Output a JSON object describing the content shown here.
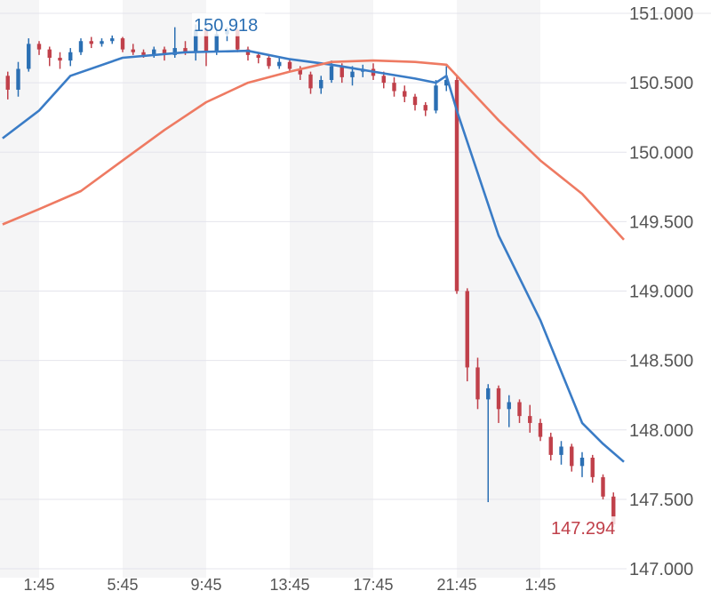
{
  "chart_data": {
    "type": "candlestick",
    "title": "",
    "ylim": [
      147.0,
      151.0
    ],
    "y_ticks": [
      "151.000",
      "150.500",
      "150.000",
      "149.500",
      "149.000",
      "148.500",
      "148.000",
      "147.500",
      "147.000"
    ],
    "x_ticks": [
      "1:45",
      "5:45",
      "9:45",
      "13:45",
      "17:45",
      "21:45",
      "1:45"
    ],
    "grid": true,
    "colors": {
      "up": "#2b6fb3",
      "down": "#c0404a",
      "ma_fast": "#3a7cc6",
      "ma_slow": "#ee7a62",
      "band": "#f5f5f6",
      "grid": "#e4e4ec"
    },
    "price_labels": [
      {
        "text": "150.918",
        "value": 150.918,
        "color": "#2b6fb3"
      },
      {
        "text": "147.294",
        "value": 147.294,
        "color": "#c0404a"
      }
    ],
    "candles_columns": [
      "time",
      "open",
      "high",
      "low",
      "close"
    ],
    "candles": [
      [
        "0:15",
        150.55,
        150.58,
        150.38,
        150.45
      ],
      [
        "0:45",
        150.45,
        150.65,
        150.4,
        150.6
      ],
      [
        "1:15",
        150.6,
        150.82,
        150.58,
        150.78
      ],
      [
        "1:45",
        150.78,
        150.8,
        150.7,
        150.74
      ],
      [
        "2:15",
        150.74,
        150.76,
        150.62,
        150.68
      ],
      [
        "2:45",
        150.68,
        150.72,
        150.6,
        150.66
      ],
      [
        "3:15",
        150.66,
        150.75,
        150.62,
        150.72
      ],
      [
        "3:45",
        150.72,
        150.82,
        150.7,
        150.8
      ],
      [
        "4:15",
        150.8,
        150.83,
        150.75,
        150.78
      ],
      [
        "4:45",
        150.78,
        150.82,
        150.76,
        150.8
      ],
      [
        "5:15",
        150.8,
        150.84,
        150.78,
        150.82
      ],
      [
        "5:45",
        150.82,
        150.83,
        150.72,
        150.74
      ],
      [
        "6:15",
        150.74,
        150.78,
        150.7,
        150.72
      ],
      [
        "6:45",
        150.72,
        150.74,
        150.68,
        150.7
      ],
      [
        "7:15",
        150.7,
        150.76,
        150.68,
        150.74
      ],
      [
        "7:45",
        150.74,
        150.76,
        150.66,
        150.7
      ],
      [
        "8:15",
        150.7,
        150.9,
        150.68,
        150.75
      ],
      [
        "8:45",
        150.75,
        150.8,
        150.7,
        150.72
      ],
      [
        "9:15",
        150.72,
        150.92,
        150.66,
        150.88
      ],
      [
        "9:45",
        150.88,
        150.9,
        150.62,
        150.72
      ],
      [
        "10:15",
        150.72,
        150.9,
        150.7,
        150.85
      ],
      [
        "10:45",
        150.85,
        150.9,
        150.8,
        150.88
      ],
      [
        "11:15",
        150.88,
        150.89,
        150.72,
        150.74
      ],
      [
        "11:45",
        150.74,
        150.76,
        150.66,
        150.7
      ],
      [
        "12:15",
        150.7,
        150.72,
        150.64,
        150.68
      ],
      [
        "12:45",
        150.68,
        150.7,
        150.6,
        150.62
      ],
      [
        "13:15",
        150.62,
        150.68,
        150.6,
        150.65
      ],
      [
        "13:45",
        150.65,
        150.67,
        150.58,
        150.6
      ],
      [
        "14:15",
        150.6,
        150.62,
        150.52,
        150.56
      ],
      [
        "14:45",
        150.56,
        150.58,
        150.42,
        150.46
      ],
      [
        "15:15",
        150.46,
        150.55,
        150.42,
        150.52
      ],
      [
        "15:45",
        150.52,
        150.66,
        150.5,
        150.62
      ],
      [
        "16:15",
        150.62,
        150.64,
        150.5,
        150.54
      ],
      [
        "16:45",
        150.54,
        150.62,
        150.48,
        150.58
      ],
      [
        "17:15",
        150.58,
        150.63,
        150.54,
        150.6
      ],
      [
        "17:45",
        150.6,
        150.64,
        150.52,
        150.55
      ],
      [
        "18:15",
        150.55,
        150.58,
        150.46,
        150.5
      ],
      [
        "18:45",
        150.5,
        150.54,
        150.4,
        150.44
      ],
      [
        "19:15",
        150.44,
        150.48,
        150.36,
        150.4
      ],
      [
        "19:45",
        150.4,
        150.42,
        150.3,
        150.34
      ],
      [
        "20:15",
        150.34,
        150.36,
        150.26,
        150.3
      ],
      [
        "20:45",
        150.3,
        150.52,
        150.28,
        150.48
      ],
      [
        "21:15",
        150.48,
        150.62,
        150.44,
        150.52
      ],
      [
        "21:45",
        150.52,
        150.55,
        148.98,
        149.0
      ],
      [
        "22:15",
        149.0,
        149.02,
        148.35,
        148.45
      ],
      [
        "22:45",
        148.45,
        148.52,
        148.15,
        148.22
      ],
      [
        "23:15",
        148.22,
        148.33,
        147.48,
        148.3
      ],
      [
        "23:45",
        148.3,
        148.32,
        148.05,
        148.15
      ],
      [
        "0:15",
        148.15,
        148.25,
        148.02,
        148.2
      ],
      [
        "0:45",
        148.2,
        148.22,
        148.05,
        148.1
      ],
      [
        "1:15",
        148.1,
        148.18,
        147.98,
        148.05
      ],
      [
        "1:45",
        148.05,
        148.08,
        147.92,
        147.95
      ],
      [
        "2:15",
        147.95,
        147.98,
        147.78,
        147.82
      ],
      [
        "2:45",
        147.82,
        147.92,
        147.75,
        147.88
      ],
      [
        "3:15",
        147.88,
        147.9,
        147.7,
        147.74
      ],
      [
        "3:45",
        147.74,
        147.84,
        147.66,
        147.8
      ],
      [
        "4:15",
        147.8,
        147.82,
        147.62,
        147.66
      ],
      [
        "4:45",
        147.66,
        147.68,
        147.5,
        147.52
      ],
      [
        "5:15",
        147.52,
        147.55,
        147.3,
        147.32
      ]
    ],
    "series": [
      {
        "type": "line",
        "color": "#3a7cc6",
        "points": [
          [
            "0:00",
            150.1
          ],
          [
            "1:45",
            150.3
          ],
          [
            "3:15",
            150.55
          ],
          [
            "5:45",
            150.68
          ],
          [
            "8:45",
            150.72
          ],
          [
            "11:45",
            150.73
          ],
          [
            "13:45",
            150.67
          ],
          [
            "15:45",
            150.63
          ],
          [
            "17:45",
            150.58
          ],
          [
            "19:45",
            150.53
          ],
          [
            "20:45",
            150.5
          ],
          [
            "21:15",
            150.55
          ],
          [
            "21:45",
            150.3
          ],
          [
            "23:45",
            149.4
          ],
          [
            "1:45",
            148.79
          ],
          [
            "3:45",
            148.05
          ],
          [
            "4:45",
            147.9
          ],
          [
            "5:45",
            147.77
          ]
        ]
      },
      {
        "type": "line",
        "color": "#ee7a62",
        "points": [
          [
            "0:00",
            149.48
          ],
          [
            "1:45",
            149.59
          ],
          [
            "3:45",
            149.72
          ],
          [
            "5:45",
            149.94
          ],
          [
            "7:45",
            150.16
          ],
          [
            "9:45",
            150.36
          ],
          [
            "11:45",
            150.5
          ],
          [
            "13:45",
            150.58
          ],
          [
            "15:45",
            150.65
          ],
          [
            "17:45",
            150.66
          ],
          [
            "19:45",
            150.65
          ],
          [
            "21:15",
            150.63
          ],
          [
            "21:45",
            150.55
          ],
          [
            "23:45",
            150.23
          ],
          [
            "1:45",
            149.94
          ],
          [
            "3:45",
            149.7
          ],
          [
            "5:45",
            149.37
          ]
        ]
      }
    ]
  }
}
